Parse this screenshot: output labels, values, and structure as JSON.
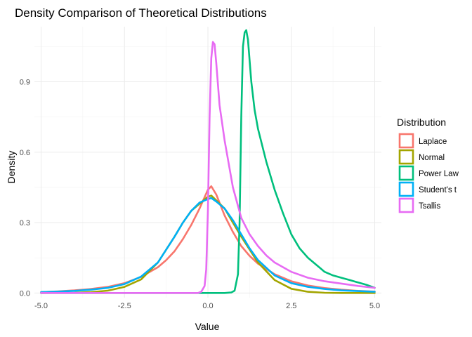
{
  "chart_data": {
    "type": "line",
    "title": "Density Comparison of Theoretical Distributions",
    "xlabel": "Value",
    "ylabel": "Density",
    "xlim": [
      -5.2,
      5.2
    ],
    "ylim": [
      -0.02,
      1.135
    ],
    "x_ticks": [
      -5.0,
      -2.5,
      0.0,
      2.5,
      5.0
    ],
    "x_tick_labels": [
      "-5.0",
      "-2.5",
      "0.0",
      "2.5",
      "5.0"
    ],
    "y_ticks": [
      0.0,
      0.3,
      0.6,
      0.9
    ],
    "y_tick_labels": [
      "0.0",
      "0.3",
      "0.6",
      "0.9"
    ],
    "grid": true,
    "legend": {
      "title": "Distribution",
      "placement": "right"
    },
    "series": [
      {
        "name": "Laplace",
        "color": "#F8766D",
        "points": [
          [
            -5,
            0.004
          ],
          [
            -4.5,
            0.007
          ],
          [
            -4,
            0.011
          ],
          [
            -3.5,
            0.017
          ],
          [
            -3,
            0.026
          ],
          [
            -2.5,
            0.042
          ],
          [
            -2,
            0.069
          ],
          [
            -1.5,
            0.11
          ],
          [
            -1.25,
            0.14
          ],
          [
            -1,
            0.178
          ],
          [
            -0.75,
            0.23
          ],
          [
            -0.5,
            0.29
          ],
          [
            -0.25,
            0.36
          ],
          [
            0,
            0.44
          ],
          [
            0.1,
            0.455
          ],
          [
            0.25,
            0.42
          ],
          [
            0.5,
            0.33
          ],
          [
            0.75,
            0.26
          ],
          [
            1,
            0.2
          ],
          [
            1.25,
            0.158
          ],
          [
            1.5,
            0.125
          ],
          [
            2,
            0.08
          ],
          [
            2.5,
            0.05
          ],
          [
            3,
            0.032
          ],
          [
            3.5,
            0.021
          ],
          [
            4,
            0.014
          ],
          [
            4.5,
            0.009
          ],
          [
            5,
            0.006
          ]
        ]
      },
      {
        "name": "Normal",
        "color": "#A3A500",
        "points": [
          [
            -5,
            0.0
          ],
          [
            -4,
            0.001
          ],
          [
            -3.5,
            0.004
          ],
          [
            -3,
            0.01
          ],
          [
            -2.5,
            0.026
          ],
          [
            -2,
            0.058
          ],
          [
            -1.5,
            0.13
          ],
          [
            -1,
            0.24
          ],
          [
            -0.75,
            0.3
          ],
          [
            -0.5,
            0.35
          ],
          [
            -0.25,
            0.38
          ],
          [
            0,
            0.41
          ],
          [
            0.1,
            0.415
          ],
          [
            0.25,
            0.395
          ],
          [
            0.5,
            0.36
          ],
          [
            0.75,
            0.3
          ],
          [
            1,
            0.24
          ],
          [
            1.5,
            0.13
          ],
          [
            2,
            0.055
          ],
          [
            2.5,
            0.018
          ],
          [
            3,
            0.005
          ],
          [
            3.5,
            0.001
          ],
          [
            4,
            0.0
          ],
          [
            5,
            0.0
          ]
        ]
      },
      {
        "name": "Power Law",
        "color": "#00BF7D",
        "points": [
          [
            -5,
            0.0
          ],
          [
            0.5,
            0.0
          ],
          [
            0.7,
            0.002
          ],
          [
            0.8,
            0.01
          ],
          [
            0.9,
            0.08
          ],
          [
            0.95,
            0.3
          ],
          [
            1.0,
            0.75
          ],
          [
            1.05,
            1.05
          ],
          [
            1.1,
            1.11
          ],
          [
            1.15,
            1.12
          ],
          [
            1.2,
            1.08
          ],
          [
            1.3,
            0.9
          ],
          [
            1.4,
            0.78
          ],
          [
            1.5,
            0.7
          ],
          [
            1.75,
            0.56
          ],
          [
            2,
            0.44
          ],
          [
            2.25,
            0.34
          ],
          [
            2.5,
            0.25
          ],
          [
            2.75,
            0.19
          ],
          [
            3,
            0.15
          ],
          [
            3.25,
            0.12
          ],
          [
            3.5,
            0.09
          ],
          [
            3.75,
            0.075
          ],
          [
            4,
            0.065
          ],
          [
            4.25,
            0.055
          ],
          [
            4.5,
            0.045
          ],
          [
            4.75,
            0.035
          ],
          [
            5,
            0.022
          ]
        ]
      },
      {
        "name": "Student's t",
        "color": "#00B0F6",
        "points": [
          [
            -5,
            0.004
          ],
          [
            -4.5,
            0.006
          ],
          [
            -4,
            0.009
          ],
          [
            -3.5,
            0.014
          ],
          [
            -3,
            0.022
          ],
          [
            -2.5,
            0.038
          ],
          [
            -2,
            0.07
          ],
          [
            -1.5,
            0.13
          ],
          [
            -1,
            0.24
          ],
          [
            -0.75,
            0.3
          ],
          [
            -0.5,
            0.35
          ],
          [
            -0.25,
            0.385
          ],
          [
            0,
            0.4
          ],
          [
            0.1,
            0.405
          ],
          [
            0.25,
            0.39
          ],
          [
            0.5,
            0.36
          ],
          [
            0.75,
            0.31
          ],
          [
            1,
            0.25
          ],
          [
            1.25,
            0.19
          ],
          [
            1.5,
            0.14
          ],
          [
            2,
            0.075
          ],
          [
            2.5,
            0.042
          ],
          [
            3,
            0.026
          ],
          [
            3.5,
            0.017
          ],
          [
            4,
            0.011
          ],
          [
            4.5,
            0.008
          ],
          [
            5,
            0.005
          ]
        ]
      },
      {
        "name": "Tsallis",
        "color": "#E76BF3",
        "points": [
          [
            -5,
            0.0
          ],
          [
            -0.3,
            0.0
          ],
          [
            -0.2,
            0.005
          ],
          [
            -0.1,
            0.03
          ],
          [
            -0.05,
            0.1
          ],
          [
            0,
            0.35
          ],
          [
            0.05,
            0.75
          ],
          [
            0.1,
            1.0
          ],
          [
            0.15,
            1.07
          ],
          [
            0.2,
            1.06
          ],
          [
            0.25,
            0.98
          ],
          [
            0.35,
            0.8
          ],
          [
            0.5,
            0.65
          ],
          [
            0.75,
            0.45
          ],
          [
            1,
            0.32
          ],
          [
            1.25,
            0.25
          ],
          [
            1.5,
            0.2
          ],
          [
            1.75,
            0.16
          ],
          [
            2,
            0.13
          ],
          [
            2.5,
            0.09
          ],
          [
            3,
            0.065
          ],
          [
            3.5,
            0.05
          ],
          [
            4,
            0.04
          ],
          [
            4.5,
            0.03
          ],
          [
            5,
            0.022
          ]
        ]
      }
    ]
  }
}
